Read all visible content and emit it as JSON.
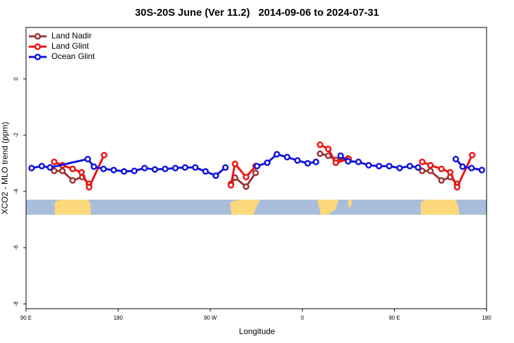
{
  "chart_data": {
    "type": "line",
    "title": "30S-20S June (Ver 11.2)   2014-09-06 to 2024-07-31",
    "x_label": "Longitude",
    "y_label": "XCO2 - MLO trend (ppm)",
    "xlim": [
      90,
      540
    ],
    "ylim": [
      -8.17,
      1.83
    ],
    "xticks": [
      {
        "value": 90,
        "label": "90 E"
      },
      180,
      {
        "value": 270,
        "label": "90 W"
      },
      {
        "value": 360,
        "label": "0"
      },
      {
        "value": 450,
        "label": "90 E"
      },
      {
        "value": 540,
        "label": "180"
      }
    ],
    "yticks": [
      0,
      -2,
      -4,
      -6,
      -8
    ],
    "legend": "top-left",
    "series": [
      {
        "name": "Land Nadir",
        "color": "#993333",
        "x": [
          117.5,
          125.5,
          135.5,
          144.9,
          151.6,
          null,
          290.2,
          294.2,
          305.0,
          314.3,
          null,
          377.3,
          385.3,
          392.7,
          404.7,
          null,
          477.1,
          485.1,
          495.9,
          504.5,
          511.2
        ],
        "values": [
          -3.27,
          -3.27,
          -3.61,
          -3.49,
          -3.73,
          null,
          -3.73,
          -3.51,
          -3.83,
          -3.34,
          null,
          -2.66,
          -2.73,
          -2.88,
          -2.83,
          null,
          -3.27,
          -3.27,
          -3.61,
          -3.49,
          -3.73
        ]
      },
      {
        "name": "Land Glint",
        "color": "#ee1111",
        "x": [
          117.5,
          125.5,
          135.5,
          144.2,
          151.6,
          166.3,
          null,
          290.2,
          294.2,
          305.0,
          314.3,
          null,
          377.3,
          385.3,
          392.7,
          405.4,
          null,
          477.1,
          485.1,
          495.9,
          504.5,
          511.2,
          525.9
        ],
        "values": [
          -2.95,
          -3.07,
          -3.2,
          -3.32,
          -3.85,
          -2.71,
          null,
          -3.78,
          -3.02,
          -3.49,
          -3.1,
          null,
          -2.34,
          -2.49,
          -2.98,
          -2.85,
          null,
          -2.95,
          -3.07,
          -3.2,
          -3.32,
          -3.85,
          -2.71
        ]
      },
      {
        "name": "Ocean Glint",
        "color": "#1111dd",
        "x": [
          95.4,
          105.4,
          113.4,
          150.3,
          156.3,
          165.7,
          175.7,
          185.8,
          195.8,
          205.8,
          215.9,
          225.9,
          235.9,
          245.4,
          255.4,
          265.4,
          275.4,
          284.8,
          null,
          315.7,
          325.7,
          335.1,
          345.1,
          355.2,
          365.2,
          373.3,
          null,
          397.4,
          404.7,
          414.8,
          424.8,
          434.9,
          444.9,
          455.0,
          465.0,
          473.0,
          null,
          509.9,
          516.6,
          525.3,
          535.4
        ],
        "values": [
          -3.17,
          -3.1,
          -3.15,
          -2.85,
          -3.12,
          -3.2,
          -3.24,
          -3.29,
          -3.27,
          -3.17,
          -3.22,
          -3.2,
          -3.17,
          -3.15,
          -3.15,
          -3.29,
          -3.44,
          -3.15,
          null,
          -3.1,
          -2.98,
          -2.68,
          -2.78,
          -2.9,
          -3.0,
          -2.95,
          null,
          -2.73,
          -2.93,
          -2.95,
          -3.07,
          -3.1,
          -3.1,
          -3.17,
          -3.1,
          -3.15,
          null,
          -2.85,
          -3.12,
          -3.17,
          -3.24
        ]
      }
    ]
  }
}
